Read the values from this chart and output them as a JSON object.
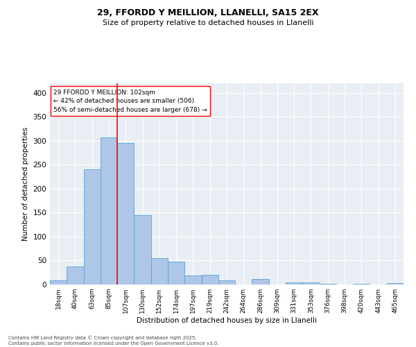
{
  "title1": "29, FFORDD Y MEILLION, LLANELLI, SA15 2EX",
  "title2": "Size of property relative to detached houses in Llanelli",
  "xlabel": "Distribution of detached houses by size in Llanelli",
  "ylabel": "Number of detached properties",
  "bin_labels": [
    "18sqm",
    "40sqm",
    "63sqm",
    "85sqm",
    "107sqm",
    "130sqm",
    "152sqm",
    "174sqm",
    "197sqm",
    "219sqm",
    "242sqm",
    "264sqm",
    "286sqm",
    "309sqm",
    "331sqm",
    "353sqm",
    "376sqm",
    "398sqm",
    "420sqm",
    "443sqm",
    "465sqm"
  ],
  "bar_values": [
    8,
    38,
    240,
    307,
    295,
    145,
    55,
    48,
    19,
    20,
    9,
    0,
    11,
    0,
    5,
    4,
    1,
    0,
    2,
    0,
    3
  ],
  "bar_color": "#aec6e8",
  "bar_edge_color": "#5a9fd4",
  "vline_pos": 3.5,
  "vline_color": "red",
  "annotation_text": "29 FFORDD Y MEILLION: 102sqm\n← 42% of detached houses are smaller (506)\n56% of semi-detached houses are larger (678) →",
  "annotation_box_color": "white",
  "annotation_box_edge": "red",
  "ylim": [
    0,
    420
  ],
  "yticks": [
    0,
    50,
    100,
    150,
    200,
    250,
    300,
    350,
    400
  ],
  "bg_color": "#e8eef4",
  "footnote": "Contains HM Land Registry data © Crown copyright and database right 2025.\nContains public sector information licensed under the Open Government Licence v3.0."
}
